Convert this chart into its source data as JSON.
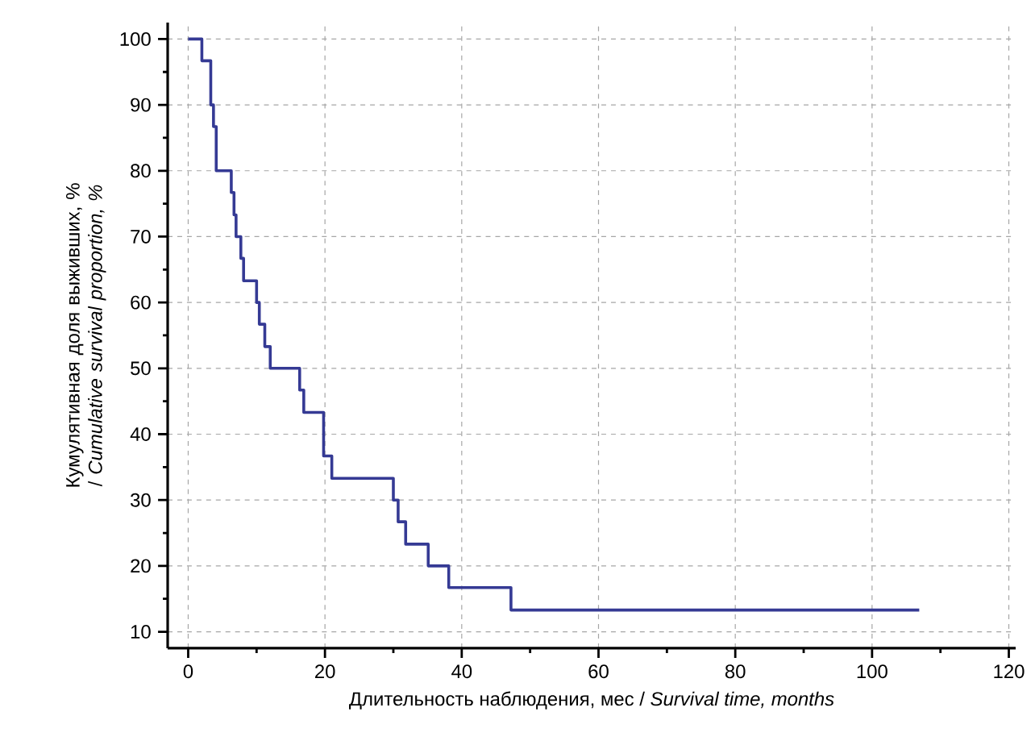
{
  "chart_data": {
    "type": "step",
    "xlabel": "Длительность наблюдения, мес / *Survival time, months*",
    "ylabel": "Кумулятивная доля выживших, % / *Cumulative survival proportion, %*",
    "x": [
      0,
      2.0,
      3.3,
      3.7,
      4.1,
      6.3,
      6.7,
      7.0,
      7.7,
      8.1,
      10.0,
      10.4,
      11.2,
      12.0,
      16.3,
      16.9,
      19.8,
      21.0,
      30.0,
      30.7,
      31.8,
      35.1,
      38.1,
      47.2,
      106.9
    ],
    "values": [
      100,
      96.7,
      90,
      86.7,
      80,
      76.7,
      73.3,
      70,
      66.7,
      63.3,
      60,
      56.7,
      53.3,
      50,
      46.7,
      43.3,
      36.7,
      33.3,
      30,
      26.7,
      23.3,
      20,
      16.7,
      13.3,
      13.3
    ],
    "color": "#353a94",
    "xlim": [
      -3,
      121
    ],
    "ylim": [
      7.5,
      102.5
    ],
    "xticks": [
      0,
      20,
      40,
      60,
      80,
      100,
      120
    ],
    "yticks": [
      10,
      20,
      30,
      40,
      50,
      60,
      70,
      80,
      90,
      100
    ],
    "grid": true,
    "line_style": "solid"
  }
}
